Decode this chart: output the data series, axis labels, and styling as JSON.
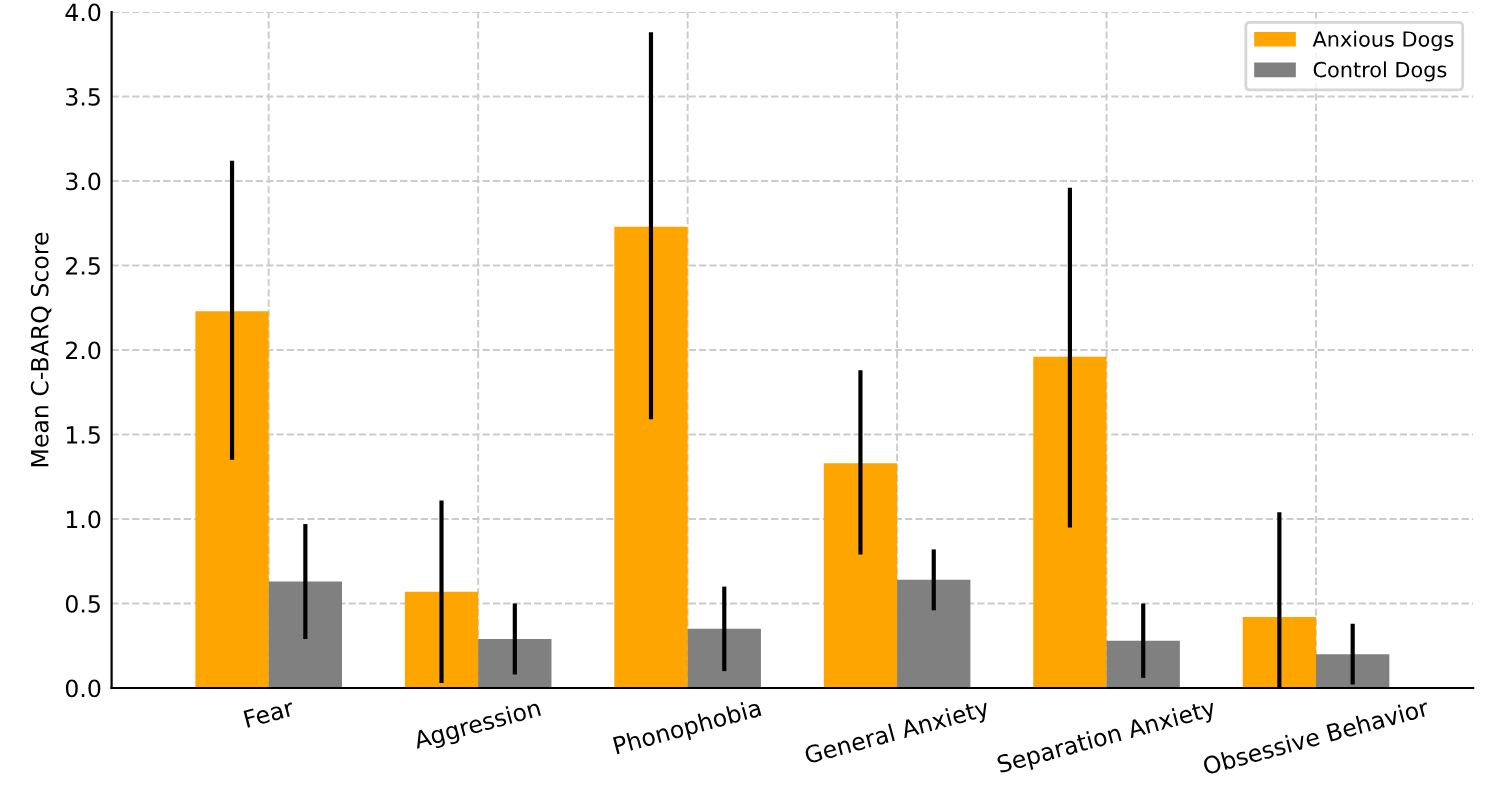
{
  "chart_data": {
    "type": "bar",
    "ylabel": "Mean C-BARQ Score",
    "categories": [
      "Fear",
      "Aggression",
      "Phonophobia",
      "General Anxiety",
      "Separation Anxiety",
      "Obsessive Behavior"
    ],
    "series": [
      {
        "name": "Anxious Dogs",
        "color": "#ffa500",
        "values": [
          2.23,
          0.57,
          2.73,
          1.33,
          1.96,
          0.42
        ],
        "errors": [
          [
            1.35,
            3.12
          ],
          [
            0.03,
            1.11
          ],
          [
            1.59,
            3.88
          ],
          [
            0.79,
            1.88
          ],
          [
            0.95,
            2.96
          ],
          [
            0.0,
            1.04
          ]
        ]
      },
      {
        "name": "Control Dogs",
        "color": "#808080",
        "values": [
          0.63,
          0.29,
          0.35,
          0.64,
          0.28,
          0.2
        ],
        "errors": [
          [
            0.29,
            0.97
          ],
          [
            0.08,
            0.5
          ],
          [
            0.1,
            0.6
          ],
          [
            0.46,
            0.82
          ],
          [
            0.06,
            0.5
          ],
          [
            0.02,
            0.38
          ]
        ]
      }
    ],
    "ylim": [
      0,
      4.0
    ],
    "yticks": [
      {
        "value": 0,
        "label": "0.0"
      },
      {
        "value": 0.5,
        "label": "0.5"
      },
      {
        "value": 1,
        "label": "1.0"
      },
      {
        "value": 1.5,
        "label": "1.5"
      },
      {
        "value": 2,
        "label": "2.0"
      },
      {
        "value": 2.5,
        "label": "2.5"
      },
      {
        "value": 3,
        "label": "3.0"
      },
      {
        "value": 3.5,
        "label": "3.5"
      },
      {
        "value": 4,
        "label": "4.0"
      }
    ],
    "grid": true,
    "legend": "top right"
  }
}
